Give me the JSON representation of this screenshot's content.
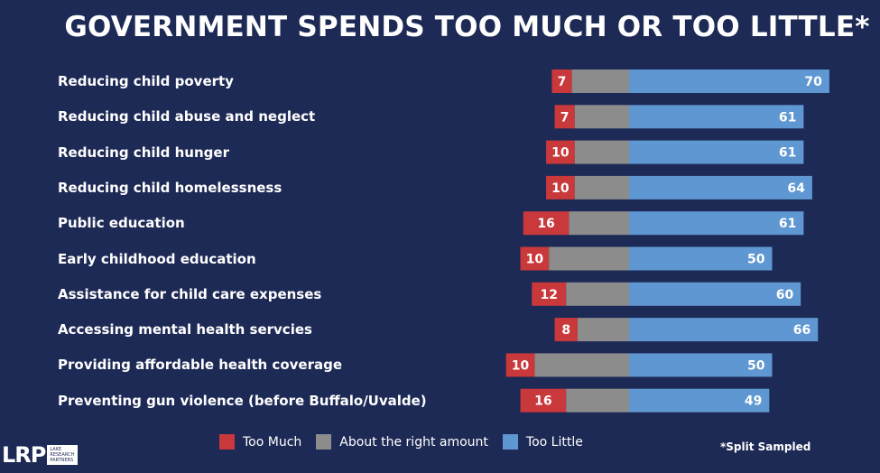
{
  "title": "GOVERNMENT SPENDS TOO MUCH OR TOO LITTLE*",
  "footnote": "*Split Sampled",
  "logo": {
    "mark": "LRP",
    "sub": "LAKE RESEARCH PARTNERS"
  },
  "colors": {
    "too_much": "#c9383a",
    "right_amount": "#8c8c8c",
    "too_little": "#5f97d2",
    "background": "#1e2a56"
  },
  "chart_data": {
    "type": "bar",
    "orientation": "horizontal",
    "stacked": true,
    "title": "GOVERNMENT SPENDS TOO MUCH OR TOO LITTLE*",
    "legend_position": "bottom",
    "categories": [
      "Reducing child poverty",
      "Reducing child abuse and neglect",
      "Reducing child hunger",
      "Reducing child homelessness",
      "Public education",
      "Early childhood education",
      "Assistance for child care expenses",
      "Accessing mental health servcies",
      "Providing affordable health coverage",
      "Preventing gun violence (before Buffalo/Uvalde)"
    ],
    "series": [
      {
        "name": "Too Much",
        "color": "#c9383a",
        "values": [
          7,
          7,
          10,
          10,
          16,
          10,
          12,
          8,
          10,
          16
        ],
        "labeled": true
      },
      {
        "name": "About the right amount",
        "color": "#8c8c8c",
        "values": [
          20,
          19,
          19,
          19,
          21,
          28,
          22,
          18,
          33,
          22
        ],
        "labeled": false
      },
      {
        "name": "Too Little",
        "color": "#5f97d2",
        "values": [
          70,
          61,
          61,
          64,
          61,
          50,
          60,
          66,
          50,
          49
        ],
        "labeled": true
      }
    ]
  }
}
